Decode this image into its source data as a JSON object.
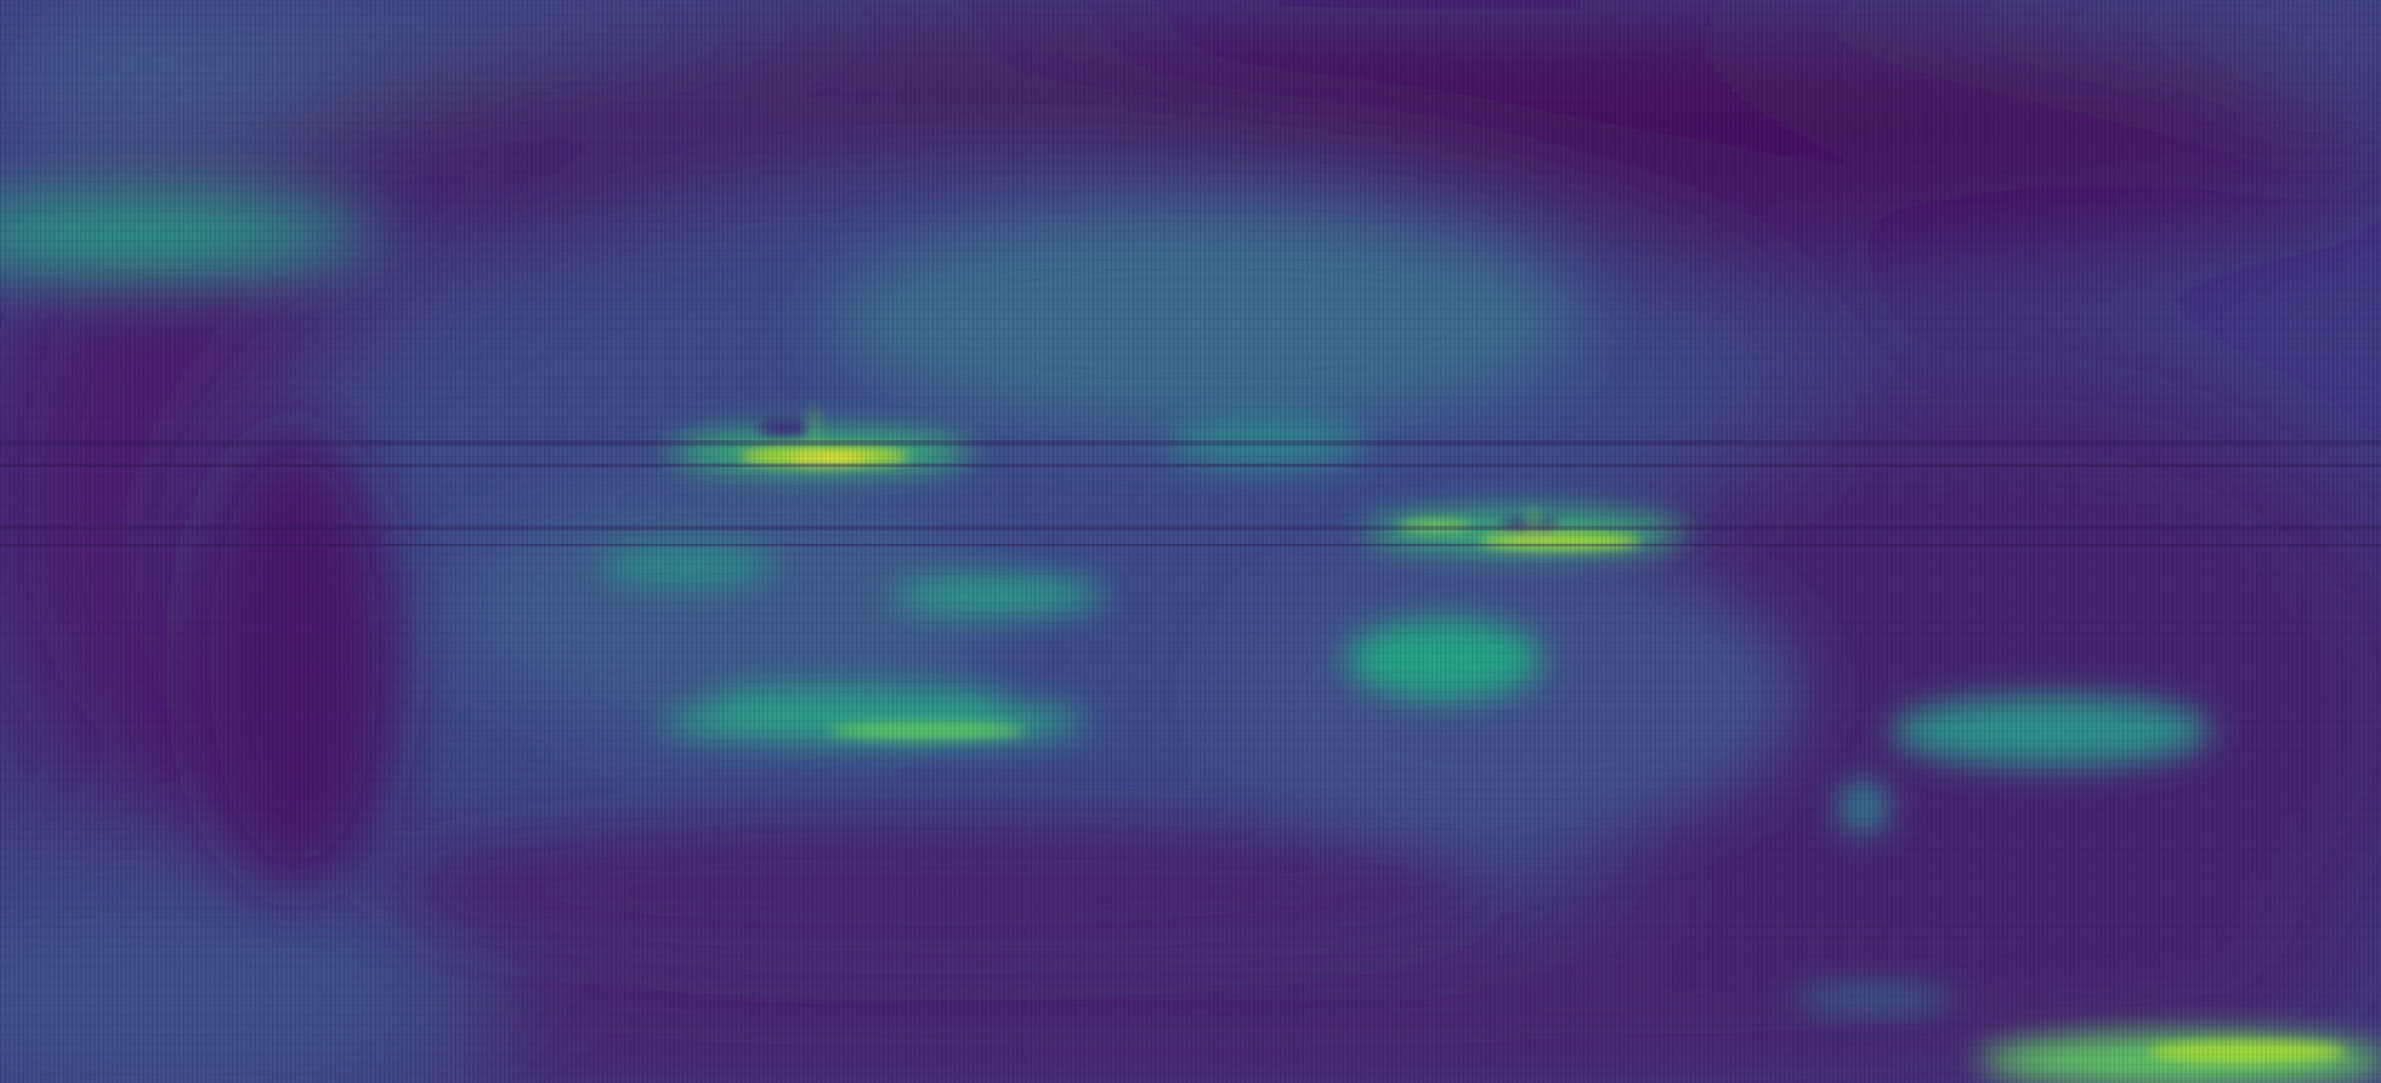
{
  "image": {
    "kind": "feature-activation heatmap",
    "subject": "face",
    "colormap": "viridis",
    "colors": {
      "background": "#44277a",
      "dark_purple": "#440b5a",
      "deep_purple": "#481a6c",
      "indigo": "#3b3f87",
      "blue": "#365b8c",
      "teal": "#2a788e",
      "teal_green": "#22a884",
      "green": "#5ec962",
      "yellow": "#dde318"
    }
  }
}
